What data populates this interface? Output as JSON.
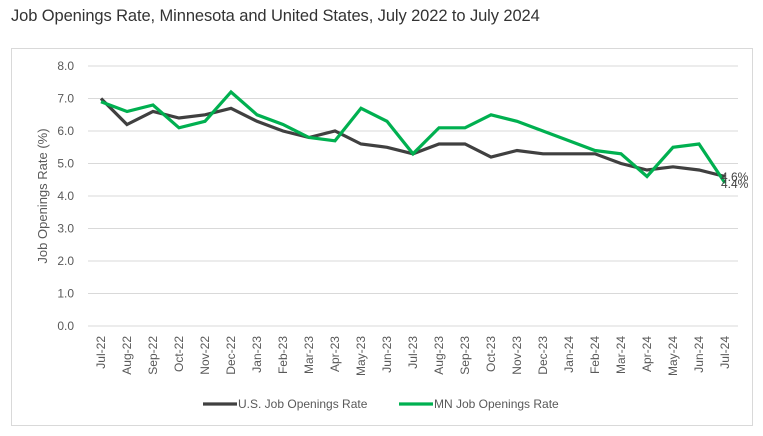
{
  "chart_data": {
    "type": "line",
    "title": "Job Openings Rate, Minnesota and United States, July 2022 to July 2024",
    "xlabel": "",
    "ylabel": "Job Openings Rate (%)",
    "ylim": [
      0,
      8
    ],
    "yticks": [
      "0.0",
      "1.0",
      "2.0",
      "3.0",
      "4.0",
      "5.0",
      "6.0",
      "7.0",
      "8.0"
    ],
    "grid": true,
    "legend_position": "bottom",
    "categories": [
      "Jul-22",
      "Aug-22",
      "Sep-22",
      "Oct-22",
      "Nov-22",
      "Dec-22",
      "Jan-23",
      "Feb-23",
      "Mar-23",
      "Apr-23",
      "May-23",
      "Jun-23",
      "Jul-23",
      "Aug-23",
      "Sep-23",
      "Oct-23",
      "Nov-23",
      "Dec-23",
      "Jan-24",
      "Feb-24",
      "Mar-24",
      "Apr-24",
      "May-24",
      "Jun-24",
      "Jul-24"
    ],
    "series": [
      {
        "name": "U.S. Job Openings Rate",
        "color": "#404040",
        "values": [
          7.0,
          6.2,
          6.6,
          6.4,
          6.5,
          6.7,
          6.3,
          6.0,
          5.8,
          6.0,
          5.6,
          5.5,
          5.3,
          5.6,
          5.6,
          5.2,
          5.4,
          5.3,
          5.3,
          5.3,
          5.0,
          4.8,
          4.9,
          4.8,
          4.6
        ],
        "end_label": "4.6%"
      },
      {
        "name": "MN Job Openings Rate",
        "color": "#00b050",
        "values": [
          6.9,
          6.6,
          6.8,
          6.1,
          6.3,
          7.2,
          6.5,
          6.2,
          5.8,
          5.7,
          6.7,
          6.3,
          5.3,
          6.1,
          6.1,
          6.5,
          6.3,
          6.0,
          5.7,
          5.4,
          5.3,
          4.6,
          5.5,
          5.6,
          4.4
        ],
        "end_label": "4.4%"
      }
    ]
  }
}
